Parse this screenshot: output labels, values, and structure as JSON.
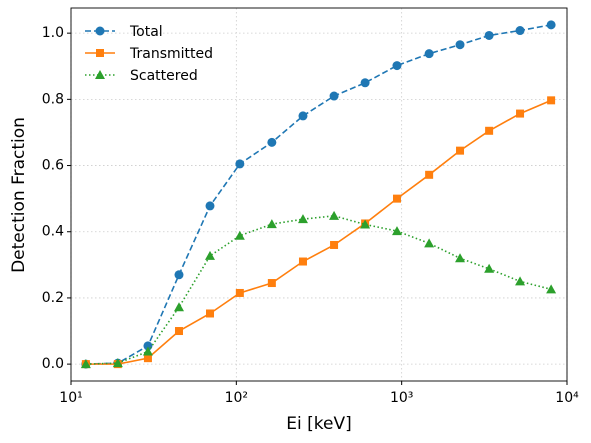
{
  "chart_data": {
    "type": "line",
    "xlabel": "Ei [keV]",
    "ylabel": "Detection Fraction",
    "x": [
      12.3,
      19.2,
      29.2,
      45,
      69.3,
      105,
      164,
      253,
      390,
      601,
      937,
      1466,
      2254,
      3380,
      5200,
      8016
    ],
    "xscale": "log",
    "series": [
      {
        "name": "Total",
        "color": "#1f77b4",
        "linestyle": "dashed",
        "marker": "circle",
        "values": [
          0,
          0.003,
          0.055,
          0.27,
          0.478,
          0.605,
          0.67,
          0.75,
          0.81,
          0.85,
          0.902,
          0.938,
          0.965,
          0.993,
          1.008,
          1.025
        ]
      },
      {
        "name": "Transmitted",
        "color": "#ff7f0e",
        "linestyle": "solid",
        "marker": "square",
        "values": [
          0,
          0,
          0.018,
          0.1,
          0.153,
          0.215,
          0.245,
          0.31,
          0.36,
          0.425,
          0.5,
          0.572,
          0.645,
          0.705,
          0.757,
          0.797
        ]
      },
      {
        "name": "Scattered",
        "color": "#2ca02c",
        "linestyle": "dotted",
        "marker": "triangle",
        "values": [
          0,
          0.003,
          0.038,
          0.172,
          0.327,
          0.388,
          0.423,
          0.438,
          0.448,
          0.422,
          0.402,
          0.365,
          0.32,
          0.288,
          0.25,
          0.226
        ]
      }
    ],
    "xlim": [
      10,
      10000
    ],
    "xticks": [
      {
        "value": 10,
        "label": "10¹"
      },
      {
        "value": 100,
        "label": "10²"
      },
      {
        "value": 1000,
        "label": "10³"
      },
      {
        "value": 10000,
        "label": "10⁴"
      }
    ],
    "ylim": [
      -0.051,
      1.076
    ],
    "yticks": [
      {
        "value": 0,
        "label": "0.0"
      },
      0.2,
      0.4,
      0.6,
      0.8,
      {
        "value": 1,
        "label": "1.0"
      }
    ],
    "grid": true,
    "legend": "upper left"
  }
}
